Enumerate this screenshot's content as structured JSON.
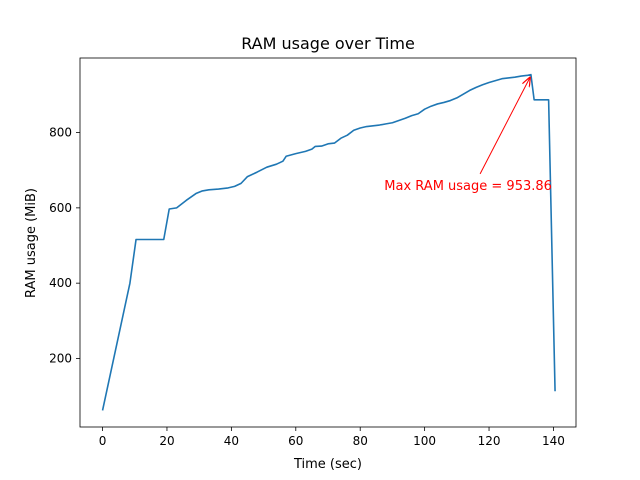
{
  "chart_data": {
    "type": "line",
    "title": "RAM usage over Time",
    "xlabel": "Time (sec)",
    "ylabel": "RAM usage (MiB)",
    "xlim": [
      -7,
      147
    ],
    "ylim": [
      18,
      998
    ],
    "xticks": [
      0,
      20,
      40,
      60,
      80,
      100,
      120,
      140
    ],
    "yticks": [
      200,
      400,
      600,
      800
    ],
    "grid": false,
    "series": [
      {
        "color": "#1f77b4",
        "x": [
          0,
          8.5,
          10.4,
          19,
          20.7,
          23,
          26,
          29,
          31,
          33,
          36,
          39,
          41,
          43,
          45,
          48,
          51,
          54,
          56,
          57,
          60,
          63,
          65,
          66,
          68,
          70,
          72,
          74,
          76,
          78,
          80,
          82,
          84,
          86,
          88,
          90,
          92,
          94,
          96,
          98,
          100,
          102,
          104,
          106,
          108,
          110,
          112,
          114,
          116,
          118,
          120,
          122,
          124,
          126,
          128,
          130,
          132,
          133,
          134,
          136,
          137,
          138,
          138.5,
          140.5
        ],
        "y": [
          62,
          400,
          516,
          516,
          597,
          600,
          620,
          638,
          645,
          648,
          650,
          653,
          657,
          665,
          683,
          695,
          708,
          716,
          724,
          737,
          744,
          750,
          756,
          763,
          764,
          770,
          772,
          785,
          793,
          806,
          812,
          816,
          818,
          820,
          823,
          826,
          832,
          838,
          845,
          850,
          862,
          870,
          876,
          880,
          885,
          892,
          902,
          912,
          920,
          927,
          933,
          938,
          943,
          945,
          947,
          950,
          952,
          953.86,
          887,
          887,
          887,
          887,
          887,
          113
        ]
      }
    ],
    "annotations": [
      {
        "text": "Max RAM usage = 953.86",
        "text_x": 113.5,
        "text_y": 661,
        "arrow_x": 133,
        "arrow_y": 953.86,
        "color": "#ff0000"
      }
    ]
  }
}
